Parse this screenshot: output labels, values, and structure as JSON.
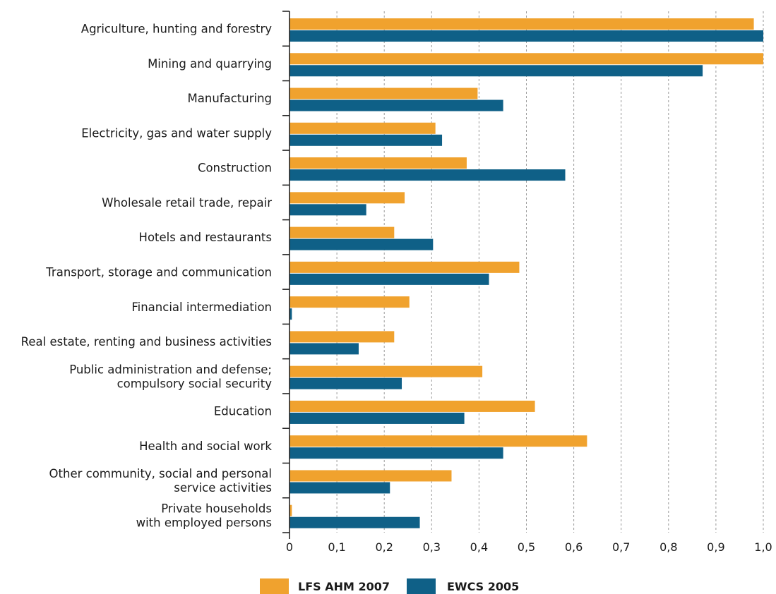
{
  "chart_data": {
    "type": "bar",
    "orientation": "horizontal",
    "categories": [
      [
        "Agriculture, hunting and forestry"
      ],
      [
        "Mining and quarrying"
      ],
      [
        "Manufacturing"
      ],
      [
        "Electricity, gas and water supply"
      ],
      [
        "Construction"
      ],
      [
        "Wholesale retail trade, repair"
      ],
      [
        "Hotels and restaurants"
      ],
      [
        "Transport, storage and communication"
      ],
      [
        "Financial intermediation"
      ],
      [
        "Real estate, renting and business activities"
      ],
      [
        "Public administration and defense;",
        "compulsory social security"
      ],
      [
        "Education"
      ],
      [
        "Health and social work"
      ],
      [
        "Other community, social and personal",
        "service activities"
      ],
      [
        "Private households",
        "with employed persons"
      ]
    ],
    "series": [
      {
        "name": "LFS AHM 2007",
        "color": "#f0a22e",
        "values": [
          0.98,
          1.0,
          0.397,
          0.308,
          0.374,
          0.243,
          0.221,
          0.485,
          0.253,
          0.221,
          0.407,
          0.518,
          0.628,
          0.342,
          0.005
        ]
      },
      {
        "name": "EWCS 2005",
        "color": "#0f6087",
        "values": [
          1.0,
          0.872,
          0.451,
          0.322,
          0.582,
          0.162,
          0.303,
          0.421,
          0.005,
          0.146,
          0.237,
          0.369,
          0.451,
          0.212,
          0.275
        ]
      }
    ],
    "x_ticks": [
      "0",
      "0,1",
      "0,2",
      "0,3",
      "0,4",
      "0,5",
      "0,6",
      "0,7",
      "0,8",
      "0,9",
      "1,0"
    ],
    "xlim": [
      0,
      1.0
    ],
    "grid": "vertical-dashed",
    "legend_position": "bottom-center",
    "title": "",
    "xlabel": "",
    "ylabel": ""
  }
}
